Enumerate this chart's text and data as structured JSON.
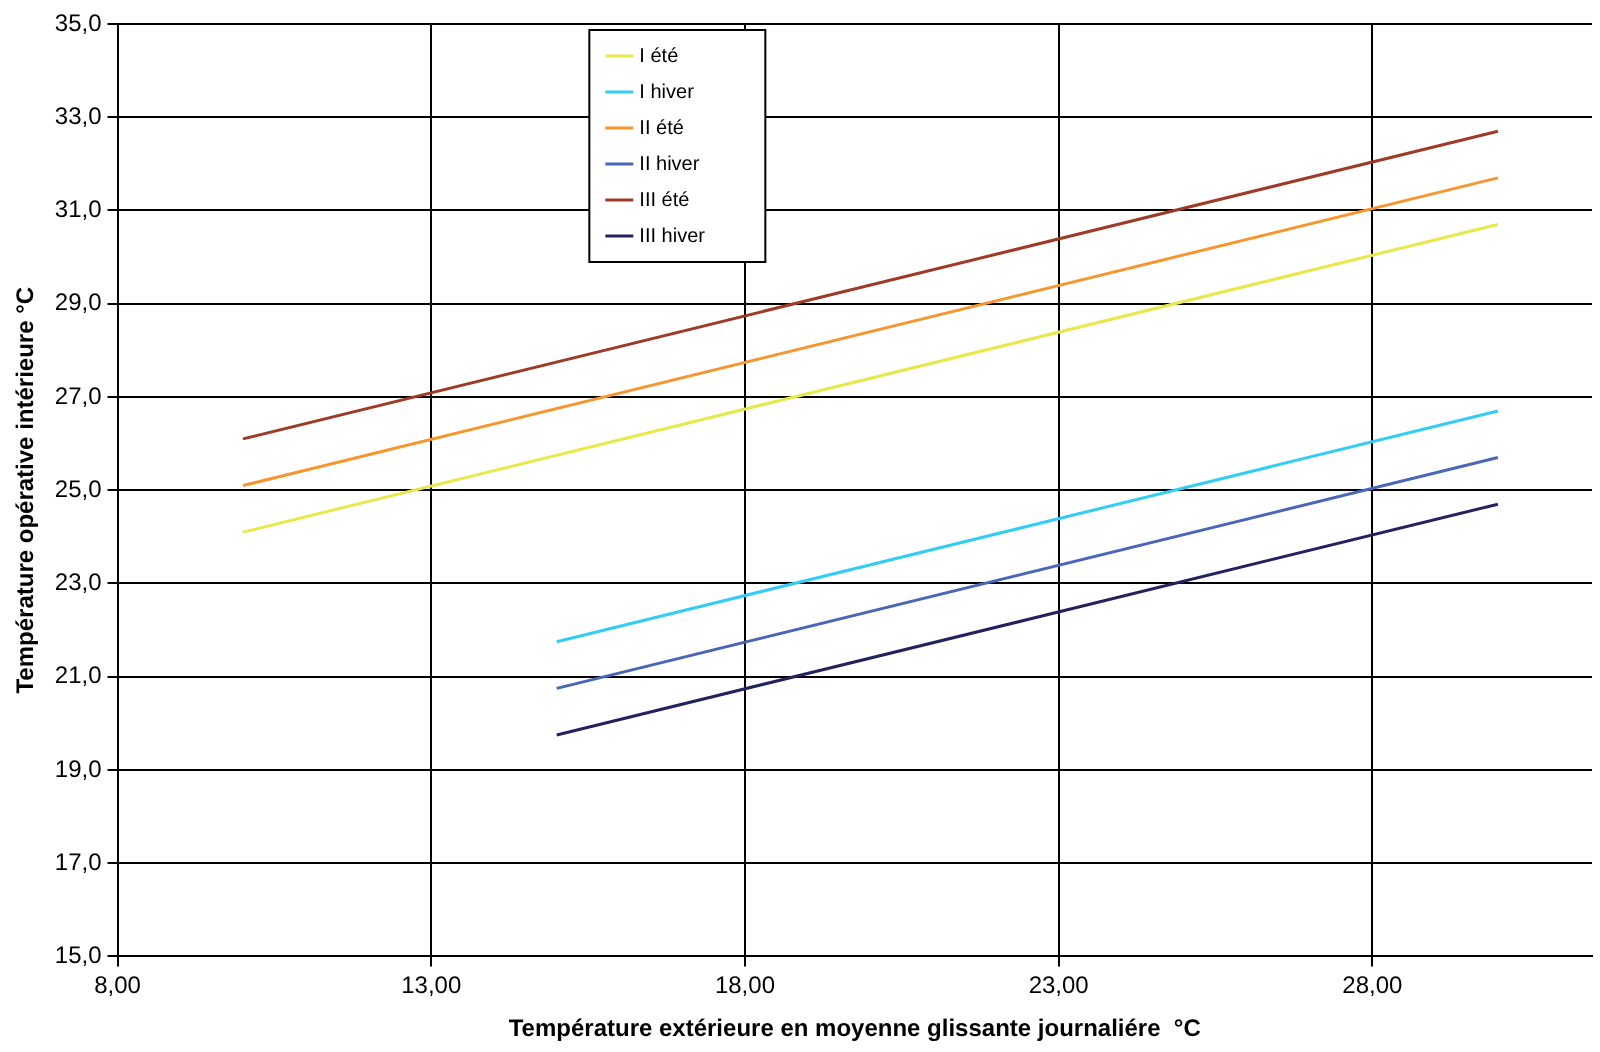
{
  "chart_data": {
    "type": "line",
    "xlabel": "Température extérieure en moyenne glissante journaliére  °C",
    "ylabel": "Température opérative intérieure °C",
    "xlim": [
      8,
      31.5
    ],
    "xticks": [
      {
        "value": 8,
        "label": "8,00"
      },
      {
        "value": 13,
        "label": "13,00"
      },
      {
        "value": 18,
        "label": "18,00"
      },
      {
        "value": 23,
        "label": "23,00"
      },
      {
        "value": 28,
        "label": "28,00"
      }
    ],
    "ylim": [
      15,
      35
    ],
    "yticks": [
      {
        "value": 15,
        "label": "15,0"
      },
      {
        "value": 17,
        "label": "17,0"
      },
      {
        "value": 19,
        "label": "19,0"
      },
      {
        "value": 21,
        "label": "21,0"
      },
      {
        "value": 23,
        "label": "23,0"
      },
      {
        "value": 25,
        "label": "25,0"
      },
      {
        "value": 27,
        "label": "27,0"
      },
      {
        "value": 29,
        "label": "29,0"
      },
      {
        "value": 31,
        "label": "31,0"
      },
      {
        "value": 33,
        "label": "33,0"
      },
      {
        "value": 35,
        "label": "35,0"
      }
    ],
    "grid": true,
    "legend": "top",
    "marker": "none",
    "line_style": "solid",
    "series": [
      {
        "name": "I été",
        "color": "#e8e84a",
        "x": [
          10,
          30
        ],
        "values": [
          24.1,
          30.7
        ]
      },
      {
        "name": "I hiver",
        "color": "#33ccf5",
        "x": [
          15,
          30
        ],
        "values": [
          21.75,
          26.7
        ]
      },
      {
        "name": "II été",
        "color": "#f7962e",
        "x": [
          10,
          30
        ],
        "values": [
          25.1,
          31.7
        ]
      },
      {
        "name": "II hiver",
        "color": "#4a66b8",
        "x": [
          15,
          30
        ],
        "values": [
          20.75,
          25.7
        ]
      },
      {
        "name": "III été",
        "color": "#9e3a26",
        "x": [
          10,
          30
        ],
        "values": [
          26.1,
          32.7
        ]
      },
      {
        "name": "III hiver",
        "color": "#22225e",
        "x": [
          15,
          30
        ],
        "values": [
          19.75,
          24.7
        ]
      }
    ]
  }
}
